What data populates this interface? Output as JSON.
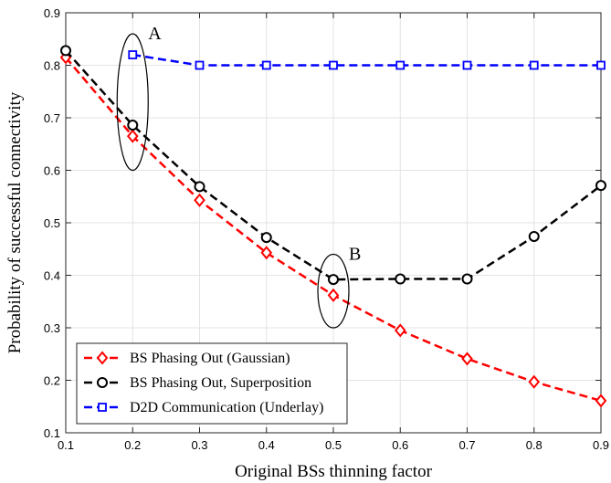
{
  "chart_data": {
    "type": "line",
    "xlabel": "Original BSs thinning factor",
    "ylabel": "Probability of successful connectivity",
    "xlim": [
      0.1,
      0.9
    ],
    "ylim": [
      0.1,
      0.9
    ],
    "xticks": [
      0.1,
      0.2,
      0.3,
      0.4,
      0.5,
      0.6,
      0.7,
      0.8,
      0.9
    ],
    "yticks": [
      0.1,
      0.2,
      0.3,
      0.4,
      0.5,
      0.6,
      0.7,
      0.8,
      0.9
    ],
    "grid": true,
    "legend_position": "bottom-left",
    "series": [
      {
        "name": "BS Phasing Out (Gaussian)",
        "color": "#ff0000",
        "marker": "diamond",
        "line_style": "dashed",
        "x": [
          0.1,
          0.2,
          0.3,
          0.4,
          0.5,
          0.6,
          0.7,
          0.8,
          0.9
        ],
        "y": [
          0.815,
          0.665,
          0.543,
          0.443,
          0.362,
          0.295,
          0.241,
          0.197,
          0.161
        ]
      },
      {
        "name": "BS Phasing Out, Superposition",
        "color": "#000000",
        "marker": "circle",
        "line_style": "dashed",
        "x": [
          0.1,
          0.2,
          0.3,
          0.4,
          0.5,
          0.6,
          0.7,
          0.8,
          0.9
        ],
        "y": [
          0.828,
          0.686,
          0.569,
          0.472,
          0.392,
          0.393,
          0.393,
          0.474,
          0.571
        ]
      },
      {
        "name": "D2D Communication (Underlay)",
        "color": "#0000ff",
        "marker": "square",
        "line_style": "dashed",
        "x": [
          0.2,
          0.3,
          0.4,
          0.5,
          0.6,
          0.7,
          0.8,
          0.9
        ],
        "y": [
          0.82,
          0.8,
          0.8,
          0.8,
          0.8,
          0.8,
          0.8,
          0.8
        ]
      }
    ],
    "annotations": [
      {
        "label": "A",
        "x": 0.2,
        "y_range": [
          0.6,
          0.86
        ]
      },
      {
        "label": "B",
        "x": 0.5,
        "y_range": [
          0.3,
          0.44
        ]
      }
    ]
  }
}
